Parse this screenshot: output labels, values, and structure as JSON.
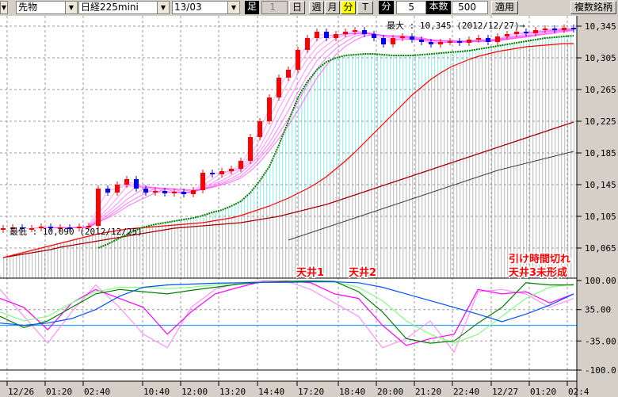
{
  "toolbar": {
    "market": "先物",
    "symbol": "日経225mini",
    "contract": "13/03",
    "bar_label": "足",
    "bar_count": "1",
    "period_buttons": [
      "日",
      "週",
      "月",
      "分",
      "T"
    ],
    "active_period": "分",
    "minute_label": "分",
    "minute_value": "5",
    "count_label": "本数",
    "count_value": "500",
    "apply": "適用",
    "multi": "複数銘柄"
  },
  "chart_data": [
    {
      "type": "candlestick",
      "price_ticks": [
        "10,345",
        "10,305",
        "10,265",
        "10,225",
        "10,185",
        "10,145",
        "10,105",
        "10,065"
      ],
      "price_tick_values": [
        10345,
        10305,
        10265,
        10225,
        10185,
        10145,
        10105,
        10065
      ],
      "ylim": [
        10032,
        10362
      ],
      "x_ticks": [
        "12/26",
        "01:20",
        "02:40",
        "10:40",
        "12:00",
        "13:20",
        "14:40",
        "17:20",
        "18:40",
        "20:00",
        "21:20",
        "22:40",
        "12/27",
        "01:20",
        "02:4"
      ],
      "closes": [
        10090,
        10091,
        10089,
        10090,
        10092,
        10090,
        10091,
        10090,
        10092,
        10093,
        10140,
        10135,
        10145,
        10152,
        10140,
        10135,
        10137,
        10134,
        10136,
        10133,
        10138,
        10160,
        10158,
        10162,
        10165,
        10175,
        10205,
        10225,
        10255,
        10280,
        10290,
        10315,
        10330,
        10338,
        10330,
        10335,
        10338,
        10340,
        10335,
        10330,
        10322,
        10330,
        10332,
        10328,
        10325,
        10322,
        10325,
        10326,
        10324,
        10328,
        10330,
        10325,
        10332,
        10335,
        10338,
        10336,
        10340,
        10342,
        10340,
        10343,
        10341
      ],
      "ma_mid": [
        null,
        null,
        null,
        null,
        null,
        null,
        null,
        null,
        null,
        null,
        10065,
        10070,
        10076,
        10082,
        10088,
        10092,
        10095,
        10097,
        10099,
        10101,
        10103,
        10106,
        10110,
        10113,
        10118,
        10124,
        10135,
        10150,
        10168,
        10195,
        10225,
        10255,
        10275,
        10290,
        10300,
        10305,
        10308,
        10309,
        10310,
        10310,
        10309,
        10308,
        10308,
        10308,
        10309,
        10310,
        10311,
        10312,
        10313,
        10314,
        10316,
        10318,
        10320,
        10322,
        10324,
        10326,
        10328,
        10330,
        10331,
        10332,
        10333
      ],
      "ma_long_red": [
        10053,
        10056,
        10059,
        10062,
        10065,
        10068,
        10071,
        10074,
        10077,
        10080,
        10083,
        10085,
        10087,
        10089,
        10090,
        10091,
        10092,
        10093,
        10094,
        10095,
        10096,
        10097,
        10099,
        10101,
        10103,
        10106,
        10110,
        10114,
        10118,
        10123,
        10128,
        10134,
        10140,
        10147,
        10155,
        10165,
        10175,
        10186,
        10198,
        10210,
        10222,
        10234,
        10246,
        10258,
        10268,
        10278,
        10286,
        10293,
        10298,
        10303,
        10307,
        10310,
        10313,
        10315,
        10317,
        10319,
        10320,
        10321,
        10322,
        10323,
        10323
      ],
      "ma_longer": [
        10053,
        10055,
        10057,
        10059,
        10061,
        10063,
        10066,
        10068,
        10070,
        10072,
        10074,
        10076,
        10078,
        10080,
        10082,
        10084,
        10086,
        10088,
        10090,
        10091,
        10092,
        10093,
        10094,
        10095,
        10096,
        10097,
        10099,
        10101,
        10103,
        10105,
        10108,
        10111,
        10114,
        10117,
        10120,
        10124,
        10128,
        10132,
        10136,
        10140,
        10144,
        10148,
        10152,
        10156,
        10160,
        10164,
        10168,
        10172,
        10176,
        10180,
        10184,
        10188,
        10192,
        10196,
        10200,
        10204,
        10208,
        10212,
        10216,
        10220,
        10224
      ],
      "ma_gray": [
        null,
        null,
        null,
        null,
        null,
        null,
        null,
        null,
        null,
        null,
        null,
        null,
        null,
        null,
        null,
        null,
        null,
        null,
        null,
        null,
        null,
        null,
        null,
        null,
        null,
        null,
        null,
        null,
        null,
        null,
        10075,
        10079,
        10083,
        10087,
        10091,
        10095,
        10099,
        10103,
        10107,
        10111,
        10115,
        10119,
        10123,
        10127,
        10131,
        10135,
        10139,
        10143,
        10147,
        10151,
        10155,
        10159,
        10163,
        10166,
        10169,
        10172,
        10175,
        10178,
        10181,
        10184,
        10187
      ],
      "annotations": {
        "max": "最大 : 10,345 (2012/12/27)→",
        "min": "最低 : 10,090 (2012/12/25)"
      },
      "colors": {
        "up": "#ff0000",
        "down": "#0000ff",
        "ma_mid": "#008000",
        "ma_red": "#ff0000",
        "ma_longer": "#a00000",
        "ma_gray": "#404040",
        "ribbon": "#ff40ff"
      }
    },
    {
      "type": "line",
      "y_ticks": [
        "100.00",
        "35.00",
        "-35.00",
        "-100.0"
      ],
      "y_tick_values": [
        100,
        35,
        -35,
        -100
      ],
      "ylim": [
        -100,
        100
      ],
      "reference_line": 0,
      "series": [
        {
          "color": "#0050ff",
          "values": [
            5,
            0,
            5,
            15,
            35,
            65,
            85,
            90,
            92,
            94,
            95,
            96,
            96,
            97,
            97,
            95,
            85,
            70,
            55,
            40,
            25,
            8,
            25,
            45,
            70
          ]
        },
        {
          "color": "#008000",
          "values": [
            20,
            -5,
            10,
            40,
            70,
            80,
            75,
            70,
            78,
            85,
            92,
            96,
            98,
            99,
            98,
            75,
            30,
            -30,
            -40,
            -35,
            5,
            40,
            95,
            90,
            90
          ]
        },
        {
          "color": "#80ff80",
          "values": [
            30,
            10,
            20,
            50,
            75,
            85,
            85,
            82,
            85,
            90,
            95,
            97,
            98,
            99,
            97,
            85,
            55,
            10,
            -20,
            -40,
            -20,
            20,
            60,
            85,
            92
          ]
        },
        {
          "color": "#ff00ff",
          "values": [
            60,
            40,
            -10,
            50,
            80,
            60,
            40,
            -20,
            30,
            70,
            85,
            98,
            99,
            95,
            70,
            60,
            0,
            -45,
            -30,
            -20,
            80,
            70,
            75,
            50,
            70
          ]
        },
        {
          "color": "#ff90ff",
          "values": [
            80,
            20,
            -40,
            30,
            90,
            40,
            -20,
            -50,
            40,
            80,
            95,
            99,
            98,
            80,
            50,
            20,
            -50,
            -30,
            10,
            -60,
            75,
            80,
            70,
            40,
            60
          ]
        }
      ],
      "annotations": {
        "top1": "天井1",
        "top2": "天井2",
        "note1": "引け時間切れ",
        "note2": "天井3未形成"
      }
    }
  ]
}
